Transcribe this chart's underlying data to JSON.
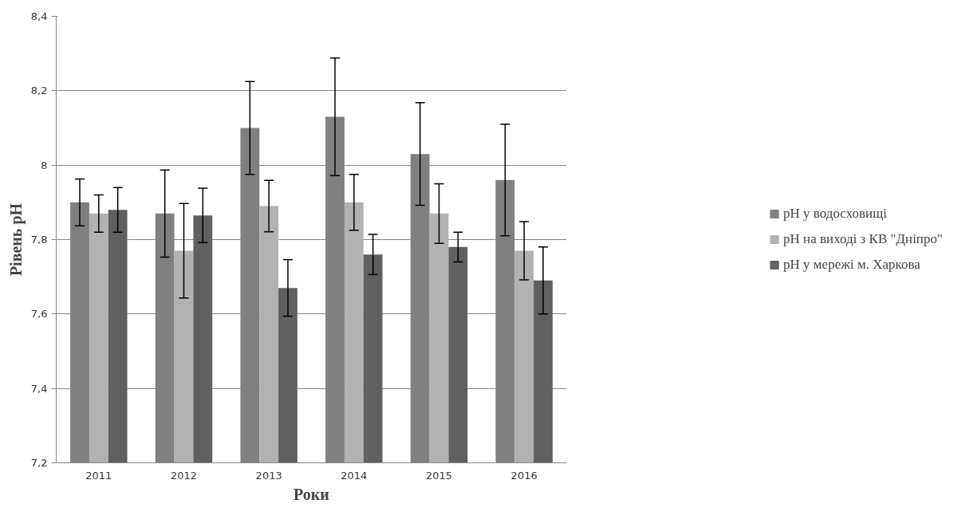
{
  "chart_data": {
    "type": "bar",
    "xlabel": "Роки",
    "ylabel": "Рівень pH",
    "categories": [
      "2011",
      "2012",
      "2013",
      "2014",
      "2015",
      "2016"
    ],
    "series": [
      {
        "name": "pH у водосховищі",
        "color": "#808080",
        "values": [
          7.9,
          7.87,
          8.1,
          8.13,
          8.03,
          7.96
        ],
        "errors": [
          0.063,
          0.117,
          0.125,
          0.158,
          0.138,
          0.15
        ]
      },
      {
        "name": "pH на виході з КВ \"Дніпро\"",
        "color": "#b2b2b2",
        "values": [
          7.87,
          7.77,
          7.89,
          7.9,
          7.87,
          7.77
        ],
        "errors": [
          0.05,
          0.127,
          0.069,
          0.075,
          0.08,
          0.078
        ]
      },
      {
        "name": "pH у мережі м. Харкова",
        "color": "#606060",
        "values": [
          7.88,
          7.865,
          7.67,
          7.76,
          7.78,
          7.69
        ],
        "errors": [
          0.06,
          0.073,
          0.076,
          0.054,
          0.04,
          0.09
        ]
      }
    ],
    "ylim": [
      7.2,
      8.4
    ],
    "yticks": [
      {
        "value": 7.2,
        "label": "7,2"
      },
      {
        "value": 7.4,
        "label": "7,4"
      },
      {
        "value": 7.6,
        "label": "7,6"
      },
      {
        "value": 7.8,
        "label": "7,8"
      },
      8,
      {
        "value": 8.2,
        "label": "8,2"
      },
      {
        "value": 8.4,
        "label": "8,4"
      }
    ],
    "grid": "y",
    "legend": "right"
  }
}
